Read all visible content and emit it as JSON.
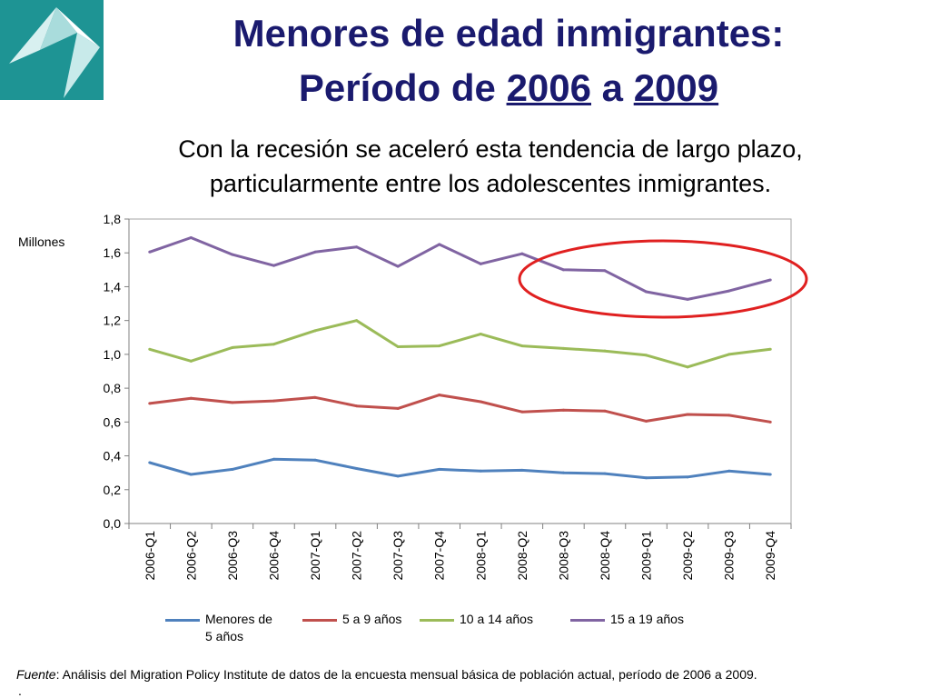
{
  "header": {
    "title_line1": "Menores de edad inmigrantes:",
    "title_line2_pre": "Período de ",
    "title_year1": "2006",
    "title_mid": " a ",
    "title_year2": "2009"
  },
  "subtitle_line1": "Con la recesión se aceleró esta tendencia de largo plazo,",
  "subtitle_line2": "particularmente entre los adolescentes inmigrantes.",
  "chart_data": {
    "type": "line",
    "ylabel": "Millones",
    "ylim": [
      0,
      1.8
    ],
    "yticks": [
      "0,0",
      "0,2",
      "0,4",
      "0,6",
      "0,8",
      "1,0",
      "1,2",
      "1,4",
      "1,6",
      "1,8"
    ],
    "categories": [
      "2006-Q1",
      "2006-Q2",
      "2006-Q3",
      "2006-Q4",
      "2007-Q1",
      "2007-Q2",
      "2007-Q3",
      "2007-Q4",
      "2008-Q1",
      "2008-Q2",
      "2008-Q3",
      "2008-Q4",
      "2009-Q1",
      "2009-Q2",
      "2009-Q3",
      "2009-Q4"
    ],
    "series": [
      {
        "name": "Menores de 5 años",
        "color": "#4f81bd",
        "values": [
          0.36,
          0.29,
          0.32,
          0.38,
          0.375,
          0.325,
          0.28,
          0.32,
          0.31,
          0.315,
          0.3,
          0.295,
          0.27,
          0.275,
          0.31,
          0.29
        ]
      },
      {
        "name": "5 a 9 años",
        "color": "#c0504d",
        "values": [
          0.71,
          0.74,
          0.715,
          0.725,
          0.745,
          0.695,
          0.68,
          0.76,
          0.72,
          0.66,
          0.67,
          0.665,
          0.605,
          0.645,
          0.64,
          0.6
        ]
      },
      {
        "name": "10 a 14 años",
        "color": "#9bbb59",
        "values": [
          1.03,
          0.96,
          1.04,
          1.06,
          1.14,
          1.2,
          1.045,
          1.05,
          1.12,
          1.05,
          1.035,
          1.02,
          0.995,
          0.925,
          1.0,
          1.03
        ]
      },
      {
        "name": "15 a 19 años",
        "color": "#8064a2",
        "values": [
          1.605,
          1.69,
          1.59,
          1.525,
          1.605,
          1.635,
          1.52,
          1.65,
          1.535,
          1.595,
          1.5,
          1.495,
          1.37,
          1.325,
          1.375,
          1.44
        ]
      }
    ],
    "legend_position": "bottom",
    "grid": false,
    "highlight_color": "#e02020"
  },
  "legend": {
    "items": [
      {
        "label_a": "Menores de",
        "label_b": "5 años"
      },
      {
        "label_a": "5 a 9 años"
      },
      {
        "label_a": "10 a 14 años"
      },
      {
        "label_a": "15 a 19 años"
      }
    ]
  },
  "source": {
    "label": "Fuente",
    "text": ": Análisis del Migration Policy Institute de datos de la encuesta mensual básica de población actual, período de 2006 a 2009."
  },
  "stray_dot": "."
}
